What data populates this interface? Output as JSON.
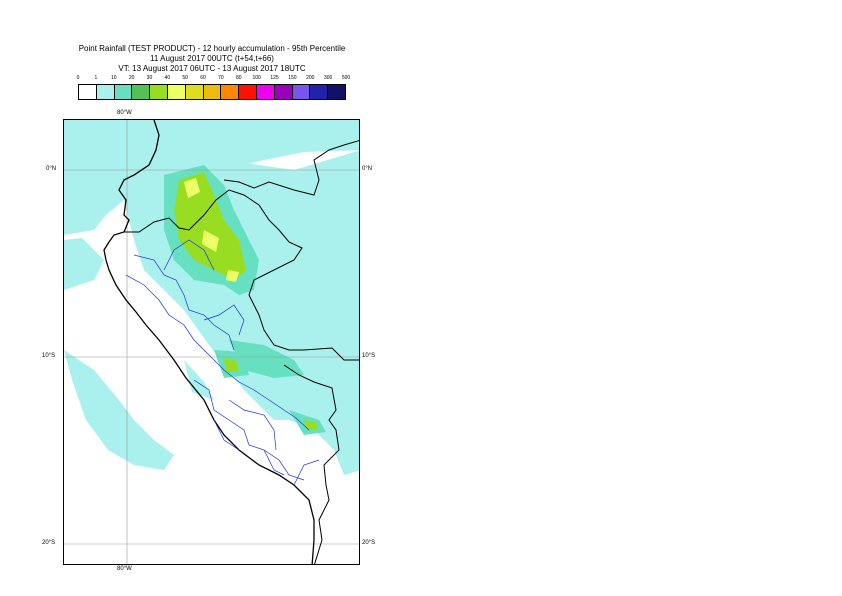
{
  "title": {
    "line1": "Point Rainfall (TEST PRODUCT) - 12 hourly accumulation - 95th Percentile",
    "line2": "11 August 2017 00UTC (t+54,t+66)",
    "line3": "VT: 13 August 2017 06UTC - 13 August 2017 18UTC"
  },
  "legend": {
    "ticks": [
      "0",
      "1",
      "10",
      "20",
      "30",
      "40",
      "50",
      "60",
      "70",
      "80",
      "100",
      "125",
      "150",
      "200",
      "300",
      "500"
    ],
    "colors": [
      "#ffffff",
      "#aaf0ec",
      "#66e0c0",
      "#55c055",
      "#99dd22",
      "#eeff66",
      "#dddd22",
      "#eebb11",
      "#ff8800",
      "#ff1100",
      "#ee00ee",
      "#9900bb",
      "#7755ee",
      "#2222aa",
      "#111166"
    ]
  },
  "map": {
    "lon_labels": {
      "top": "80°W",
      "bottom": "80°W"
    },
    "lat_labels": {
      "lat0": "0°N",
      "lat10": "10°S",
      "lat20": "20°S"
    }
  }
}
